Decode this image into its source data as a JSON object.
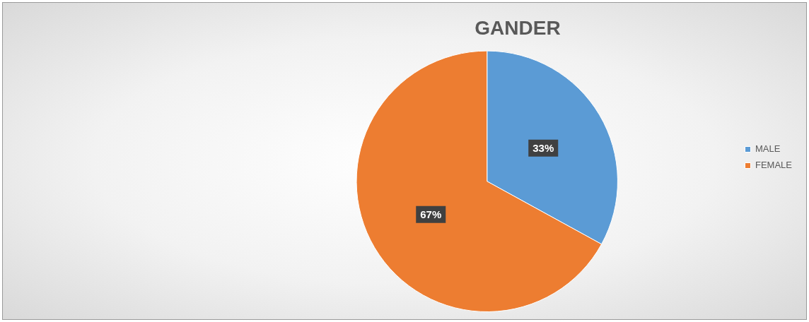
{
  "chart_data": {
    "type": "pie",
    "title": "GANDER",
    "categories": [
      "MALE",
      "FEMALE"
    ],
    "values": [
      33,
      67
    ],
    "colors": [
      "#5b9bd5",
      "#ed7d31"
    ],
    "value_labels": [
      "33%",
      "67%"
    ],
    "legend": "right"
  }
}
